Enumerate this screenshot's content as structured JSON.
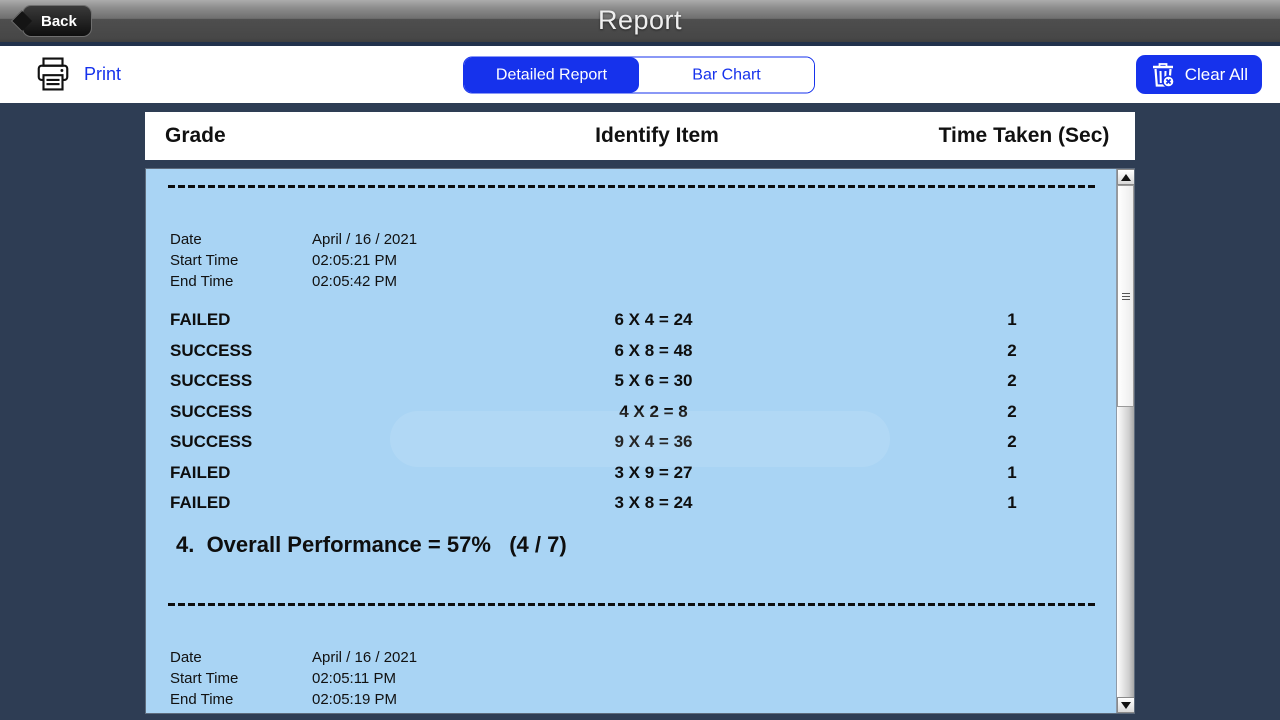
{
  "topbar": {
    "back_label": "Back",
    "title": "Report"
  },
  "toolbar": {
    "print_label": "Print",
    "tabs": [
      {
        "label": "Detailed Report",
        "active": true
      },
      {
        "label": "Bar Chart",
        "active": false
      }
    ],
    "clear_all_label": "Clear All"
  },
  "table": {
    "headers": {
      "grade": "Grade",
      "item": "Identify Item",
      "time": "Time Taken (Sec)"
    }
  },
  "report": {
    "sessions": [
      {
        "meta": [
          {
            "label": "Date",
            "value": "April / 16 / 2021"
          },
          {
            "label": "Start Time",
            "value": "02:05:21 PM"
          },
          {
            "label": "End Time",
            "value": "02:05:42 PM"
          }
        ],
        "rows": [
          {
            "grade": "FAILED",
            "item": "6 X 4 = 24",
            "time": "1"
          },
          {
            "grade": "SUCCESS",
            "item": "6 X 8 = 48",
            "time": "2"
          },
          {
            "grade": "SUCCESS",
            "item": "5 X 6 = 30",
            "time": "2"
          },
          {
            "grade": "SUCCESS",
            "item": "4 X 2 = 8",
            "time": "2"
          },
          {
            "grade": "SUCCESS",
            "item": "9 X 4 = 36",
            "time": "2"
          },
          {
            "grade": "FAILED",
            "item": "3 X 9 = 27",
            "time": "1"
          },
          {
            "grade": "FAILED",
            "item": "3 X 8 = 24",
            "time": "1"
          }
        ],
        "summary": "4.  Overall Performance = 57%   (4 / 7)"
      },
      {
        "meta": [
          {
            "label": "Date",
            "value": "April / 16 / 2021"
          },
          {
            "label": "Start Time",
            "value": "02:05:11 PM"
          },
          {
            "label": "End Time",
            "value": "02:05:19 PM"
          }
        ],
        "rows": [],
        "summary": ""
      }
    ]
  },
  "icons": {
    "back": "back-arrow-icon",
    "print": "printer-icon",
    "clear_all": "trash-delete-icon",
    "scroll_up": "scroll-up-arrow-icon",
    "scroll_down": "scroll-down-arrow-icon"
  },
  "colors": {
    "accent_blue": "#1632EC",
    "navy_background": "#2E3D54",
    "panel_blue": "#A9D4F4",
    "topbar_dark": "#474747",
    "text_dark": "#0E0E0E",
    "white": "#FFFFFF"
  }
}
